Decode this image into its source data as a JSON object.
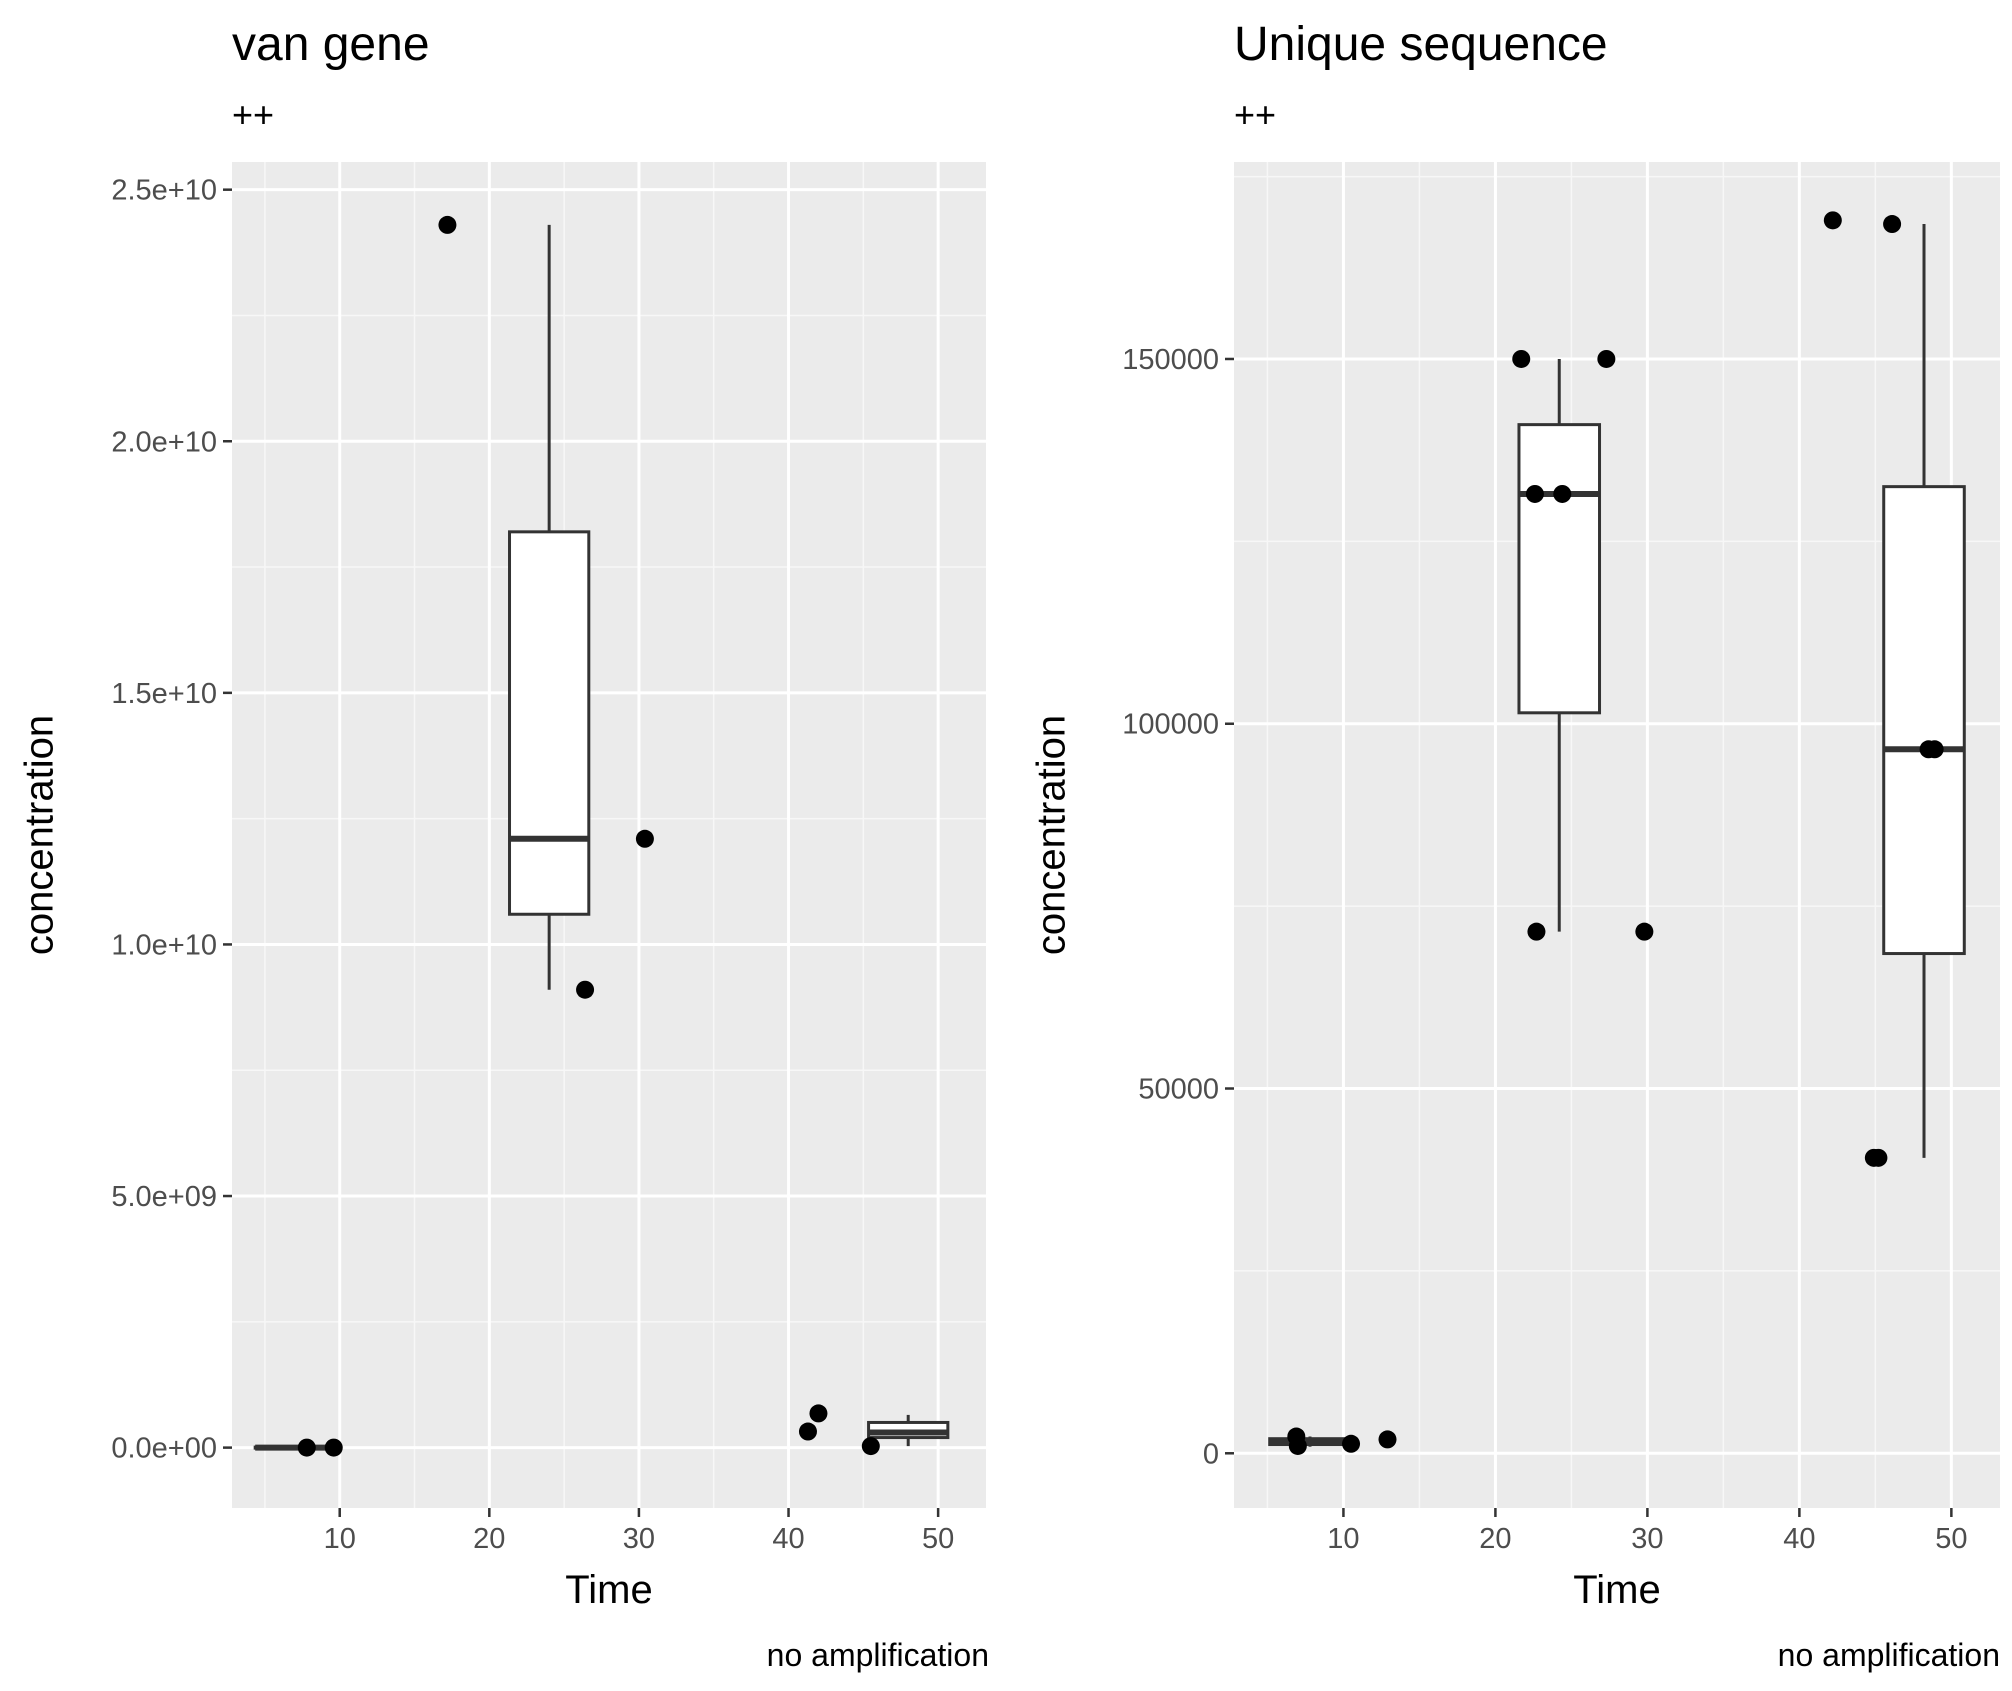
{
  "chart_data": [
    {
      "type": "box",
      "title": "van gene",
      "subtitle": "++",
      "caption": "no amplification",
      "xlabel": "Time",
      "ylabel": "concentration",
      "xlim": [
        2.8,
        53.2
      ],
      "ylim": [
        -1200000000,
        25550000000
      ],
      "x_ticks": [
        10,
        20,
        30,
        40,
        50
      ],
      "x_tick_labels": [
        "10",
        "20",
        "30",
        "40",
        "50"
      ],
      "y_ticks": [
        0,
        5000000000,
        10000000000,
        15000000000,
        20000000000,
        25000000000
      ],
      "y_tick_labels": [
        "0.0e+00",
        "5.0e+09",
        "1.0e+10",
        "1.5e+10",
        "2.0e+10",
        "2.5e+10"
      ],
      "grid": true,
      "boxes": [
        {
          "x": 7,
          "width": 5.3,
          "lower": -10000000,
          "q1": -10000000,
          "median": 0,
          "q3": 10000000,
          "upper": 10000000
        },
        {
          "x": 24,
          "width": 5.3,
          "lower": 9100000000,
          "q1": 10600000000,
          "median": 12100000000,
          "q3": 18200000000,
          "upper": 24300000000
        },
        {
          "x": 48,
          "width": 5.3,
          "lower": 30000000,
          "q1": 200000000,
          "median": 300000000,
          "q3": 500000000,
          "upper": 650000000
        }
      ],
      "points": [
        {
          "x": 7.8,
          "y": 0
        },
        {
          "x": 9.6,
          "y": 0
        },
        {
          "x": 17.2,
          "y": 24300000000
        },
        {
          "x": 26.4,
          "y": 9100000000
        },
        {
          "x": 30.4,
          "y": 12100000000
        },
        {
          "x": 41.3,
          "y": 320000000
        },
        {
          "x": 42.0,
          "y": 680000000
        },
        {
          "x": 45.5,
          "y": 30000000
        }
      ]
    },
    {
      "type": "box",
      "title": "Unique sequence",
      "subtitle": "++",
      "caption": "no amplification",
      "xlabel": "Time",
      "ylabel": "concentration",
      "xlim": [
        2.8,
        53.2
      ],
      "ylim": [
        -7500,
        177000
      ],
      "x_ticks": [
        10,
        20,
        30,
        40,
        50
      ],
      "x_tick_labels": [
        "10",
        "20",
        "30",
        "40",
        "50"
      ],
      "y_ticks": [
        0,
        50000,
        100000,
        150000
      ],
      "y_tick_labels": [
        "0",
        "50000",
        "100000",
        "150000"
      ],
      "grid": true,
      "boxes": [
        {
          "x": 7.8,
          "width": 5.3,
          "lower": 900,
          "q1": 1200,
          "median": 1500,
          "q3": 2000,
          "upper": 2300
        },
        {
          "x": 24.2,
          "width": 5.3,
          "lower": 71500,
          "q1": 101500,
          "median": 131500,
          "q3": 141000,
          "upper": 150000
        },
        {
          "x": 48.2,
          "width": 5.3,
          "lower": 40500,
          "q1": 68500,
          "median": 96500,
          "q3": 132500,
          "upper": 168500
        }
      ],
      "points": [
        {
          "x": 6.9,
          "y": 2300
        },
        {
          "x": 7.0,
          "y": 1000
        },
        {
          "x": 10.5,
          "y": 1300
        },
        {
          "x": 12.9,
          "y": 1900
        },
        {
          "x": 21.7,
          "y": 150000
        },
        {
          "x": 22.6,
          "y": 131500
        },
        {
          "x": 24.4,
          "y": 131500
        },
        {
          "x": 27.3,
          "y": 150000
        },
        {
          "x": 22.7,
          "y": 71500
        },
        {
          "x": 29.8,
          "y": 71500
        },
        {
          "x": 42.2,
          "y": 169000
        },
        {
          "x": 46.1,
          "y": 168500
        },
        {
          "x": 44.9,
          "y": 40500
        },
        {
          "x": 45.2,
          "y": 40500
        },
        {
          "x": 48.5,
          "y": 96500
        },
        {
          "x": 48.9,
          "y": 96500
        }
      ]
    }
  ]
}
